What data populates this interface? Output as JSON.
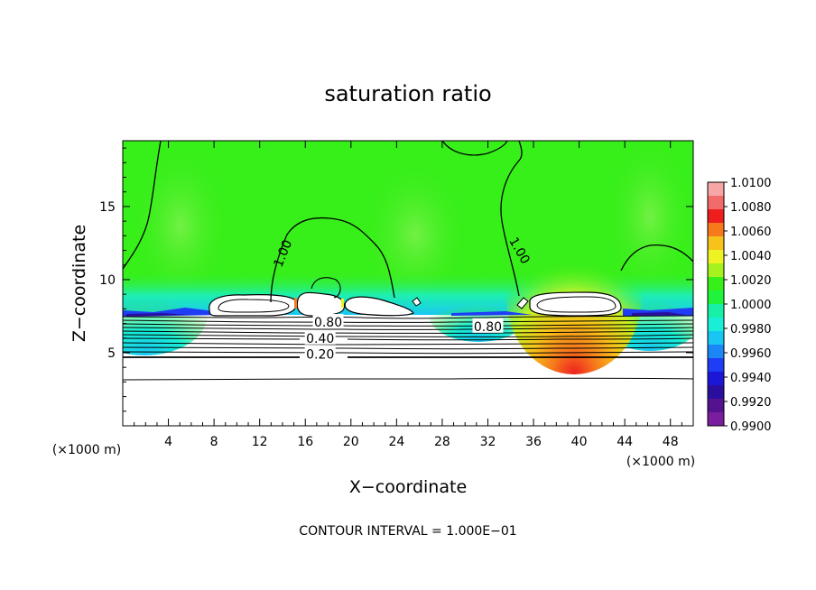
{
  "chart_data": {
    "type": "contour",
    "title": "saturation ratio",
    "xlabel": "X−coordinate",
    "ylabel": "Z−coordinate",
    "x_unit_left": "(×1000 m)",
    "x_unit_right": "(×1000 m)",
    "footer": "CONTOUR INTERVAL = 1.000E−01",
    "xlim": [
      0,
      50
    ],
    "ylim": [
      0,
      19.5
    ],
    "x_ticks": [
      4,
      8,
      12,
      16,
      20,
      24,
      28,
      32,
      36,
      40,
      44,
      48
    ],
    "y_ticks": [
      5,
      10,
      15
    ],
    "contour_interval": 0.1,
    "contour_labels": [
      {
        "text": "1.00",
        "x": 14,
        "z": 11.8,
        "angle": -68
      },
      {
        "text": "1.00",
        "x": 34.8,
        "z": 12.0,
        "angle": 60
      },
      {
        "text": "0.80",
        "x": 18.0,
        "z": 7.1,
        "angle": 0
      },
      {
        "text": "0.80",
        "x": 32.0,
        "z": 6.8,
        "angle": 0
      },
      {
        "text": "0.40",
        "x": 17.3,
        "z": 6.0,
        "angle": 0
      },
      {
        "text": "0.20",
        "x": 17.3,
        "z": 4.9,
        "angle": 0
      }
    ],
    "colorbar": {
      "levels": [
        "1.0100",
        "1.0080",
        "1.0060",
        "1.0040",
        "1.0020",
        "1.0000",
        "0.9980",
        "0.9960",
        "0.9940",
        "0.9920",
        "0.9900"
      ],
      "colors": [
        "#f7a6a6",
        "#f26b6b",
        "#ee1e1e",
        "#f6791c",
        "#f7c21a",
        "#eef323",
        "#a6f21e",
        "#37ef19",
        "#1ff33c",
        "#18f0a8",
        "#18efd6",
        "#19c6f3",
        "#1b86f5",
        "#1f3df5",
        "#1c16d6",
        "#2a0ea0",
        "#55128f",
        "#7a1e9e"
      ]
    }
  }
}
